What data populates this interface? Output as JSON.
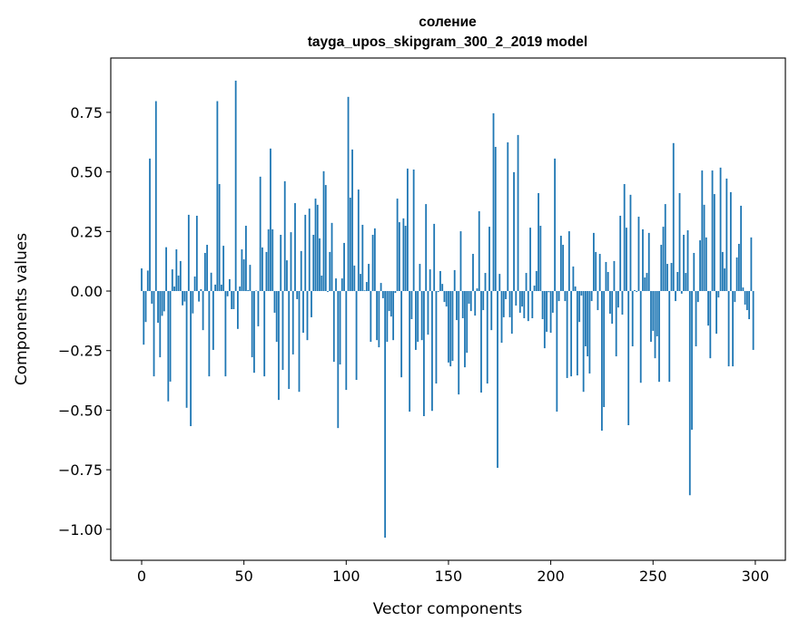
{
  "chart_data": {
    "type": "bar",
    "title_line1": "соление",
    "title_line2": "tayga_upos_skipgram_300_2_2019 model",
    "xlabel": "Vector components",
    "ylabel": "Components values",
    "xlim": [
      -15.1,
      314.7
    ],
    "ylim": [
      -1.13,
      0.978
    ],
    "xticks": [
      0,
      50,
      100,
      150,
      200,
      250,
      300
    ],
    "xtick_labels": [
      "0",
      "50",
      "100",
      "150",
      "200",
      "250",
      "300"
    ],
    "yticks": [
      -1.0,
      -0.75,
      -0.5,
      -0.25,
      0.0,
      0.25,
      0.5,
      0.75
    ],
    "ytick_labels": [
      "−1.00",
      "−0.75",
      "−0.50",
      "−0.25",
      "0.00",
      "0.25",
      "0.50",
      "0.75"
    ],
    "grid": false,
    "bar_color": "#1f77b4",
    "bar_width": 0.8,
    "values": [
      0.095,
      -0.225,
      -0.13,
      0.086,
      0.556,
      -0.053,
      -0.358,
      0.797,
      -0.133,
      -0.278,
      -0.104,
      -0.085,
      0.184,
      -0.463,
      -0.38,
      0.091,
      0.019,
      0.175,
      0.065,
      0.126,
      -0.06,
      -0.044,
      -0.49,
      0.32,
      -0.567,
      -0.094,
      0.061,
      0.316,
      -0.044,
      0.008,
      -0.164,
      0.16,
      0.194,
      -0.358,
      0.077,
      -0.247,
      0.027,
      0.797,
      0.449,
      0.027,
      0.19,
      -0.358,
      -0.022,
      0.05,
      -0.076,
      -0.076,
      0.883,
      -0.159,
      0.019,
      0.175,
      0.133,
      0.274,
      0.004,
      0.11,
      -0.278,
      -0.343,
      0.002,
      -0.148,
      0.48,
      0.183,
      -0.358,
      0.164,
      0.259,
      0.598,
      0.259,
      -0.091,
      -0.213,
      -0.457,
      0.236,
      -0.331,
      0.461,
      0.129,
      -0.411,
      0.247,
      -0.266,
      0.369,
      -0.034,
      -0.423,
      0.168,
      -0.175,
      0.32,
      -0.206,
      0.346,
      -0.11,
      0.236,
      0.388,
      0.362,
      0.221,
      0.065,
      0.503,
      0.445,
      -0.004,
      0.164,
      0.286,
      -0.297,
      0.053,
      -0.575,
      -0.308,
      0.053,
      0.202,
      -0.415,
      0.815,
      0.392,
      0.594,
      0.107,
      -0.373,
      0.426,
      0.072,
      0.278,
      0.003,
      0.038,
      0.114,
      -0.213,
      0.236,
      0.263,
      -0.206,
      -0.236,
      0.034,
      -0.03,
      -1.035,
      -0.213,
      -0.084,
      -0.107,
      -0.206,
      -0.008,
      0.388,
      0.289,
      -0.362,
      0.305,
      0.274,
      0.514,
      -0.506,
      -0.118,
      0.51,
      -0.247,
      -0.213,
      0.114,
      -0.206,
      -0.525,
      0.365,
      -0.183,
      0.091,
      -0.503,
      0.282,
      -0.388,
      -0.004,
      0.084,
      0.03,
      -0.046,
      -0.065,
      -0.3,
      -0.316,
      -0.293,
      0.088,
      -0.122,
      -0.434,
      0.251,
      -0.114,
      -0.32,
      -0.259,
      -0.053,
      -0.084,
      0.156,
      -0.103,
      0.011,
      0.335,
      -0.426,
      -0.08,
      0.076,
      -0.388,
      0.27,
      -0.164,
      0.746,
      0.605,
      -0.742,
      0.072,
      -0.217,
      -0.11,
      -0.034,
      0.624,
      -0.11,
      -0.179,
      0.499,
      -0.061,
      0.655,
      -0.091,
      -0.065,
      -0.114,
      0.076,
      -0.126,
      0.266,
      -0.114,
      0.023,
      0.084,
      0.411,
      0.274,
      -0.118,
      -0.24,
      -0.171,
      -0.005,
      -0.175,
      -0.091,
      0.556,
      -0.506,
      -0.042,
      0.232,
      0.194,
      -0.042,
      -0.365,
      0.251,
      -0.358,
      0.103,
      0.019,
      -0.354,
      -0.13,
      -0.019,
      -0.423,
      -0.232,
      -0.274,
      -0.346,
      -0.042,
      0.244,
      0.164,
      -0.08,
      0.156,
      -0.586,
      -0.487,
      0.122,
      0.08,
      -0.095,
      -0.137,
      0.126,
      -0.274,
      -0.069,
      0.316,
      -0.099,
      0.449,
      0.266,
      -0.563,
      0.404,
      -0.232,
      0.004,
      -0.004,
      0.312,
      -0.385,
      0.259,
      0.057,
      0.076,
      0.244,
      -0.213,
      -0.167,
      -0.282,
      -0.19,
      -0.381,
      0.194,
      0.27,
      0.365,
      0.114,
      -0.381,
      0.118,
      0.621,
      -0.042,
      0.08,
      0.411,
      -0.011,
      0.236,
      0.076,
      0.255,
      -0.857,
      -0.582,
      0.16,
      -0.232,
      -0.046,
      0.213,
      0.506,
      0.362,
      0.225,
      -0.145,
      -0.282,
      0.506,
      0.407,
      -0.179,
      -0.027,
      0.518,
      0.164,
      0.095,
      0.472,
      -0.316,
      0.415,
      -0.316,
      -0.046,
      0.141,
      0.198,
      0.358,
      0.015,
      -0.057,
      -0.08,
      -0.118,
      0.225,
      -0.247
    ]
  }
}
